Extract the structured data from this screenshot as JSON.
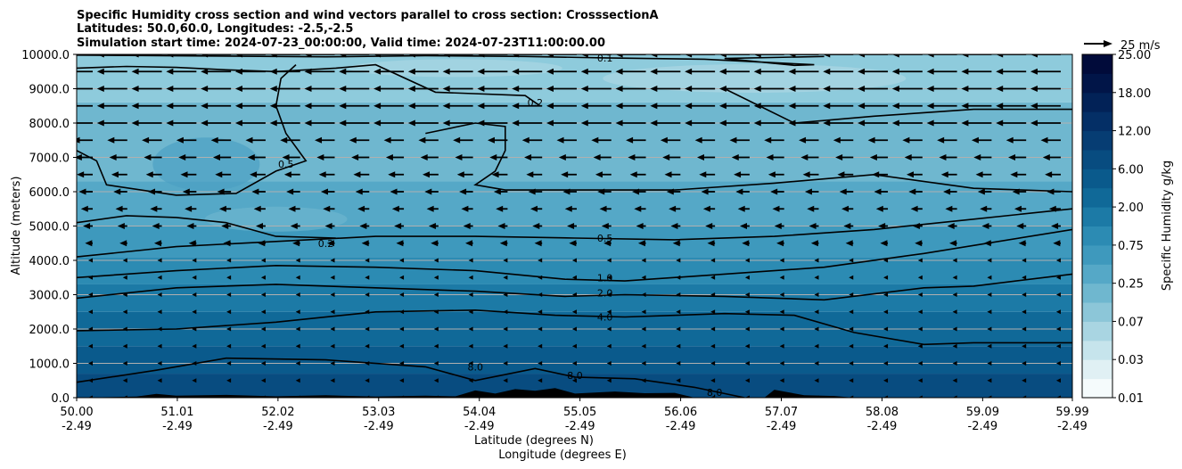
{
  "title_lines": [
    "Specific Humidity cross section and wind vectors parallel to cross section: CrosssectionA",
    "Latitudes: 50.0,60.0, Longitudes: -2.5,-2.5",
    "Simulation start time: 2024-07-23_00:00:00, Valid time: 2024-07-23T11:00:00.00"
  ],
  "quiver_key_label": "25 m/s",
  "colorbar": {
    "label": "Specific Humidity g/kg",
    "ticks": [
      "25.00",
      "18.00",
      "12.00",
      "6.00",
      "2.00",
      "0.75",
      "0.25",
      "0.07",
      "0.03",
      "0.01"
    ],
    "colors": [
      "#f5fbfc",
      "#e0f0f4",
      "#c6e4ec",
      "#a9d5e2",
      "#8cc6d8",
      "#6fb7cf",
      "#55a8c7",
      "#3e99bd",
      "#2c8bb3",
      "#1c7aa6",
      "#106998",
      "#0a5a8c",
      "#084c80",
      "#063d73",
      "#042f66",
      "#022257",
      "#011548",
      "#010b3a"
    ]
  },
  "chart_data": {
    "type": "contour",
    "title": "Specific Humidity cross section and wind vectors parallel to cross section: CrosssectionA",
    "ylabel": "Altitude (meters)",
    "xlabel_lat": "Latitude (degrees N)",
    "xlabel_lon": "Longitude (degrees E)",
    "ylim": [
      0,
      10000
    ],
    "xlim": [
      50.0,
      59.99
    ],
    "yticks": [
      "0.0",
      "1000.0",
      "2000.0",
      "3000.0",
      "4000.0",
      "5000.0",
      "6000.0",
      "7000.0",
      "8000.0",
      "9000.0",
      "10000.0"
    ],
    "xticks": [
      {
        "lat": "50.00",
        "lon": "-2.49"
      },
      {
        "lat": "51.01",
        "lon": "-2.49"
      },
      {
        "lat": "52.02",
        "lon": "-2.49"
      },
      {
        "lat": "53.03",
        "lon": "-2.49"
      },
      {
        "lat": "54.04",
        "lon": "-2.49"
      },
      {
        "lat": "55.05",
        "lon": "-2.49"
      },
      {
        "lat": "56.06",
        "lon": "-2.49"
      },
      {
        "lat": "57.07",
        "lon": "-2.49"
      },
      {
        "lat": "58.08",
        "lon": "-2.49"
      },
      {
        "lat": "59.09",
        "lon": "-2.49"
      },
      {
        "lat": "59.99",
        "lon": "-2.49"
      }
    ],
    "grid": "horizontal",
    "contour_levels": [
      "0.1",
      "0.2",
      "0.5",
      "1.0",
      "2.0",
      "4.0",
      "8.0"
    ],
    "contour_labels": [
      {
        "text": "0.1",
        "lat": 55.3,
        "alt": 9900
      },
      {
        "text": "0.2",
        "lat": 54.6,
        "alt": 8600
      },
      {
        "text": "0.5",
        "lat": 52.1,
        "alt": 6800
      },
      {
        "text": "0.2",
        "lat": 52.5,
        "alt": 4500
      },
      {
        "text": "0.5",
        "lat": 55.3,
        "alt": 4650
      },
      {
        "text": "1.0",
        "lat": 55.3,
        "alt": 3500
      },
      {
        "text": "2.0",
        "lat": 55.3,
        "alt": 3050
      },
      {
        "text": "4.0",
        "lat": 55.3,
        "alt": 2350
      },
      {
        "text": "8.0",
        "lat": 54.0,
        "alt": 900
      },
      {
        "text": "8.0",
        "lat": 55.0,
        "alt": 650
      },
      {
        "text": "8.0",
        "lat": 56.4,
        "alt": 150
      }
    ],
    "wind_vectors": "westward (negative along-section), strongest ~25 m/s above 8000 m, weak near surface"
  }
}
